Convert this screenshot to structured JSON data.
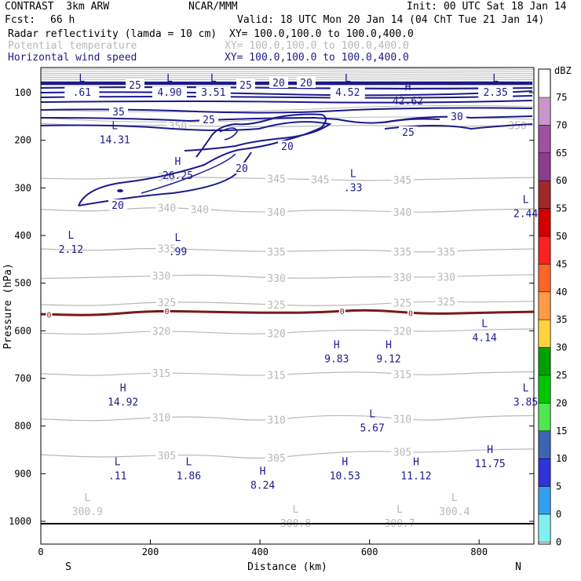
{
  "header": {
    "model": "CONTRAST  3km ARW",
    "org": "NCAR/MMM",
    "init": "Init: 00 UTC Sat 18 Jan 14",
    "fcst_label": "Fcst:",
    "fcst_value": "66 h",
    "valid": "Valid: 18 UTC Mon 20 Jan 14 (04 ChT Tue 21 Jan 14)",
    "fields": [
      {
        "name": "Radar reflectivity (lamda = 10 cm)",
        "xy": "XY= 100.0,100.0 to 100.0,400.0"
      },
      {
        "name": "Potential temperature",
        "xy": "XY= 100.0,100.0 to 100.0,400.0"
      },
      {
        "name": "Horizontal wind speed",
        "xy": "XY= 100.0,100.0 to 100.0,400.0"
      }
    ],
    "colors": {
      "black": "#000000",
      "gray": "#b8b8b8",
      "blue": "#1a1a8c"
    }
  },
  "chart_data": {
    "type": "contour-cross-section",
    "xlabel": "Distance (km)",
    "ylabel": "Pressure (hPa)",
    "xlim": [
      0,
      900
    ],
    "ylim": [
      1050,
      60
    ],
    "x_ticks": [
      0,
      200,
      400,
      600,
      800
    ],
    "y_ticks": [
      100,
      200,
      300,
      400,
      500,
      600,
      700,
      800,
      900,
      1000
    ],
    "x_end_labels": {
      "left": "S",
      "right": "N"
    },
    "isentropes": [
      {
        "value": 305,
        "label": "305",
        "points": [
          [
            0,
            860
          ],
          [
            100,
            866
          ],
          [
            200,
            862
          ],
          [
            300,
            860
          ],
          [
            400,
            870
          ],
          [
            500,
            858
          ],
          [
            600,
            852
          ],
          [
            700,
            856
          ],
          [
            800,
            850
          ],
          [
            900,
            848
          ]
        ],
        "labels_at": [
          230,
          430,
          660
        ]
      },
      {
        "value": 310,
        "label": "310",
        "points": [
          [
            0,
            785
          ],
          [
            100,
            790
          ],
          [
            200,
            782
          ],
          [
            300,
            780
          ],
          [
            400,
            790
          ],
          [
            500,
            778
          ],
          [
            600,
            778
          ],
          [
            700,
            790
          ],
          [
            800,
            780
          ],
          [
            900,
            778
          ]
        ],
        "labels_at": [
          220,
          430,
          660
        ]
      },
      {
        "value": 315,
        "label": "315",
        "points": [
          [
            0,
            690
          ],
          [
            100,
            695
          ],
          [
            200,
            688
          ],
          [
            300,
            690
          ],
          [
            400,
            695
          ],
          [
            500,
            688
          ],
          [
            600,
            686
          ],
          [
            700,
            694
          ],
          [
            800,
            688
          ],
          [
            900,
            686
          ]
        ],
        "labels_at": [
          220,
          430,
          660
        ]
      },
      {
        "value": 320,
        "label": "320",
        "points": [
          [
            0,
            605
          ],
          [
            100,
            608
          ],
          [
            200,
            600
          ],
          [
            300,
            603
          ],
          [
            400,
            608
          ],
          [
            500,
            600
          ],
          [
            600,
            598
          ],
          [
            700,
            602
          ],
          [
            800,
            598
          ],
          [
            900,
            596
          ]
        ],
        "labels_at": [
          220,
          430,
          660
        ]
      },
      {
        "value": 325,
        "label": "325",
        "points": [
          [
            0,
            545
          ],
          [
            100,
            548
          ],
          [
            200,
            540
          ],
          [
            300,
            540
          ],
          [
            400,
            544
          ],
          [
            500,
            548
          ],
          [
            600,
            545
          ],
          [
            700,
            538
          ],
          [
            800,
            540
          ],
          [
            900,
            538
          ]
        ],
        "labels_at": [
          230,
          430,
          660,
          740
        ]
      },
      {
        "value": 330,
        "label": "330",
        "points": [
          [
            0,
            490
          ],
          [
            100,
            488
          ],
          [
            200,
            485
          ],
          [
            300,
            482
          ],
          [
            400,
            488
          ],
          [
            500,
            490
          ],
          [
            600,
            486
          ],
          [
            700,
            488
          ],
          [
            800,
            484
          ],
          [
            900,
            482
          ]
        ],
        "labels_at": [
          220,
          430,
          660,
          740
        ]
      },
      {
        "value": 335,
        "label": "335",
        "points": [
          [
            0,
            428
          ],
          [
            100,
            432
          ],
          [
            200,
            426
          ],
          [
            300,
            430
          ],
          [
            400,
            434
          ],
          [
            500,
            432
          ],
          [
            600,
            430
          ],
          [
            700,
            436
          ],
          [
            800,
            430
          ],
          [
            900,
            428
          ]
        ],
        "labels_at": [
          230,
          430,
          660,
          740
        ]
      },
      {
        "value": 340,
        "label": "340",
        "points": [
          [
            0,
            345
          ],
          [
            100,
            350
          ],
          [
            200,
            340
          ],
          [
            300,
            345
          ],
          [
            400,
            352
          ],
          [
            500,
            346
          ],
          [
            600,
            348
          ],
          [
            700,
            352
          ],
          [
            800,
            346
          ],
          [
            900,
            344
          ]
        ],
        "labels_at": [
          230,
          290,
          430,
          660
        ]
      },
      {
        "value": 345,
        "label": "345",
        "points": [
          [
            0,
            280
          ],
          [
            100,
            282
          ],
          [
            200,
            276
          ],
          [
            300,
            278
          ],
          [
            400,
            280
          ],
          [
            500,
            282
          ],
          [
            600,
            285
          ],
          [
            700,
            282
          ],
          [
            800,
            280
          ],
          [
            900,
            278
          ]
        ],
        "labels_at": [
          230,
          430,
          510,
          660
        ]
      },
      {
        "value": 350,
        "label": "350",
        "points": [
          [
            0,
            165
          ],
          [
            100,
            170
          ],
          [
            200,
            168
          ],
          [
            300,
            170
          ],
          [
            400,
            172
          ],
          [
            500,
            170
          ],
          [
            600,
            168
          ],
          [
            700,
            172
          ],
          [
            800,
            170
          ],
          [
            900,
            168
          ]
        ],
        "labels_at": [
          250,
          870
        ]
      }
    ],
    "melting_level": {
      "value": 0,
      "label": "0",
      "points": [
        [
          0,
          565
        ],
        [
          100,
          568
        ],
        [
          200,
          558
        ],
        [
          300,
          560
        ],
        [
          400,
          562
        ],
        [
          500,
          562
        ],
        [
          600,
          555
        ],
        [
          700,
          565
        ],
        [
          800,
          562
        ],
        [
          900,
          560
        ]
      ],
      "labels_at": [
        15,
        230,
        550,
        675
      ]
    },
    "wind_speed_contours": [
      {
        "value": 20,
        "label": "20"
      },
      {
        "value": 25,
        "label": "25"
      },
      {
        "value": 30,
        "label": "30"
      },
      {
        "value": 35,
        "label": "35"
      }
    ],
    "extrema": [
      {
        "type": "L",
        "value": ".61",
        "x": 75,
        "p": 100
      },
      {
        "type": "L",
        "value": "4.90",
        "x": 235,
        "p": 100
      },
      {
        "type": "L",
        "value": "3.51",
        "x": 315,
        "p": 100
      },
      {
        "type": "L",
        "value": "4.52",
        "x": 560,
        "p": 100
      },
      {
        "type": "H",
        "value": "42.62",
        "x": 670,
        "p": 118
      },
      {
        "type": "L",
        "value": "2.35",
        "x": 830,
        "p": 100
      },
      {
        "type": "L",
        "value": "14.31",
        "x": 135,
        "p": 200
      },
      {
        "type": "H",
        "value": "26.25",
        "x": 250,
        "p": 275
      },
      {
        "type": "L",
        "value": ".33",
        "x": 570,
        "p": 300
      },
      {
        "type": "L",
        "value": "2.44",
        "x": 885,
        "p": 355
      },
      {
        "type": "L",
        "value": "2.12",
        "x": 55,
        "p": 430
      },
      {
        "type": "L",
        "value": ".99",
        "x": 250,
        "p": 435
      },
      {
        "type": "L",
        "value": "4.14",
        "x": 810,
        "p": 615
      },
      {
        "type": "H",
        "value": "9.83",
        "x": 540,
        "p": 660
      },
      {
        "type": "H",
        "value": "9.12",
        "x": 635,
        "p": 660
      },
      {
        "type": "H",
        "value": "14.92",
        "x": 150,
        "p": 750
      },
      {
        "type": "L",
        "value": "3.85",
        "x": 885,
        "p": 750
      },
      {
        "type": "L",
        "value": "5.67",
        "x": 605,
        "p": 805
      },
      {
        "type": "L",
        "value": ".11",
        "x": 140,
        "p": 905
      },
      {
        "type": "L",
        "value": "1.86",
        "x": 270,
        "p": 905
      },
      {
        "type": "H",
        "value": "8.24",
        "x": 405,
        "p": 925
      },
      {
        "type": "H",
        "value": "10.53",
        "x": 555,
        "p": 905
      },
      {
        "type": "H",
        "value": "11.12",
        "x": 685,
        "p": 905
      },
      {
        "type": "H",
        "value": "11.75",
        "x": 820,
        "p": 880
      },
      {
        "type": "L",
        "value": "300.9",
        "x": 85,
        "p": 980,
        "gray": true
      },
      {
        "type": "L",
        "value": "300.8",
        "x": 465,
        "p": 1005,
        "gray": true
      },
      {
        "type": "L",
        "value": "300.7",
        "x": 655,
        "p": 1005,
        "gray": true
      },
      {
        "type": "L",
        "value": "300.4",
        "x": 755,
        "p": 980,
        "gray": true
      }
    ]
  },
  "colorbar": {
    "unit": "dBZ",
    "levels": [
      {
        "label": "75",
        "color": "#c896c8"
      },
      {
        "label": "70",
        "color": "#a050a0"
      },
      {
        "label": "65",
        "color": "#8c3c8c"
      },
      {
        "label": "60",
        "color": "#a02828"
      },
      {
        "label": "55",
        "color": "#d20000"
      },
      {
        "label": "50",
        "color": "#ff2020"
      },
      {
        "label": "45",
        "color": "#ff6428"
      },
      {
        "label": "40",
        "color": "#ff9a46"
      },
      {
        "label": "35",
        "color": "#ffd23c"
      },
      {
        "label": "30",
        "color": "#00a000"
      },
      {
        "label": "25",
        "color": "#00c800"
      },
      {
        "label": "20",
        "color": "#50e650"
      },
      {
        "label": "15",
        "color": "#3c64b4"
      },
      {
        "label": "10",
        "color": "#3232dc"
      },
      {
        "label": "5",
        "color": "#32a0f0"
      },
      {
        "label": "0",
        "color": "#80f0f0"
      }
    ],
    "bottom_label": "0"
  }
}
